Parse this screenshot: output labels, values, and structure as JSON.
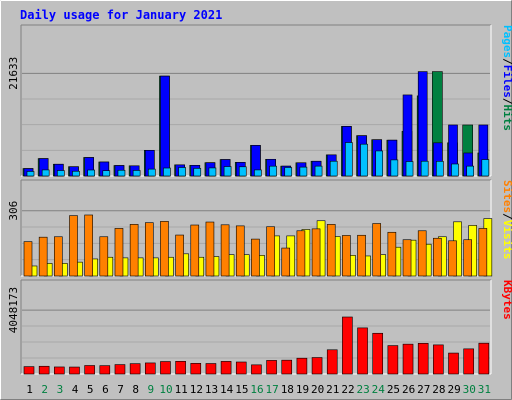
{
  "chart_data": {
    "type": "bar",
    "title": "Daily usage for January 2021",
    "categories": [
      "1",
      "2",
      "3",
      "4",
      "5",
      "6",
      "7",
      "8",
      "9",
      "10",
      "11",
      "12",
      "13",
      "14",
      "15",
      "16",
      "17",
      "18",
      "19",
      "20",
      "21",
      "22",
      "23",
      "24",
      "25",
      "26",
      "27",
      "28",
      "29",
      "30",
      "31"
    ],
    "weekend_days": [
      "2",
      "3",
      "9",
      "10",
      "16",
      "17",
      "23",
      "24",
      "30",
      "31"
    ],
    "grid": true,
    "panels": [
      {
        "name": "hits_files_pages",
        "max_label": "21633",
        "ymax": 21633,
        "right_labels": [
          {
            "text": "Pages",
            "color": "#00c0ff"
          },
          {
            "text": "/",
            "color": "#000000"
          },
          {
            "text": "Files",
            "color": "#0000ff"
          },
          {
            "text": "/",
            "color": "#000000"
          },
          {
            "text": "Hits",
            "color": "#008040"
          }
        ],
        "series": [
          {
            "name": "Hits",
            "color": "#008040",
            "values": [
              1574,
              3670,
              2480,
              1960,
              3900,
              2950,
              2210,
              2150,
              5410,
              21050,
              2350,
              2250,
              2810,
              3470,
              2880,
              6450,
              3520,
              2080,
              2790,
              3110,
              4450,
              10450,
              8500,
              7650,
              7550,
              9400,
              16880,
              22000,
              6990,
              10750,
              4850
            ]
          },
          {
            "name": "Files",
            "color": "#0000ff",
            "values": [
              1574,
              3670,
              2480,
              1960,
              3900,
              2950,
              2210,
              2150,
              5410,
              21050,
              2350,
              2250,
              2810,
              3470,
              2880,
              6450,
              3520,
              2080,
              2790,
              3110,
              4450,
              10450,
              8500,
              7650,
              7550,
              17080,
              22000,
              6990,
              10750,
              4850,
              10750
            ]
          },
          {
            "name": "Pages",
            "color": "#00c0ff",
            "values": [
              960,
              1280,
              1150,
              1000,
              1260,
              1120,
              1210,
              1170,
              1450,
              1680,
              1790,
              1600,
              1700,
              1990,
              1940,
              1280,
              2070,
              1790,
              1870,
              2080,
              3110,
              7050,
              6700,
              5280,
              3390,
              3050,
              3110,
              3090,
              2530,
              2080,
              3460
            ]
          }
        ]
      },
      {
        "name": "visits_sites",
        "max_label": "306",
        "ymax": 306,
        "right_labels": [
          {
            "text": "Sites",
            "color": "#ff8000"
          },
          {
            "text": "/",
            "color": "#000000"
          },
          {
            "text": "Visits",
            "color": "#ffff00"
          }
        ],
        "series": [
          {
            "name": "Visits",
            "color": "#ffff00",
            "values": [
              47,
              59,
              59,
              65,
              80,
              88,
              85,
              85,
              85,
              88,
              104,
              88,
              91,
              100,
              100,
              97,
              188,
              188,
              218,
              259,
              185,
              97,
              94,
              100,
              135,
              168,
              149,
              184,
              254,
              237,
              269
            ]
          },
          {
            "name": "Sites",
            "color": "#ff8000",
            "values": [
              161,
              182,
              184,
              283,
              286,
              184,
              223,
              242,
              250,
              256,
              192,
              239,
              253,
              240,
              235,
              173,
              231,
              131,
              212,
              221,
              242,
              190,
              191,
              246,
              205,
              170,
              212,
              177,
              165,
              170,
              223
            ]
          }
        ]
      },
      {
        "name": "kbytes",
        "max_label": "4048173",
        "ymax": 4048173,
        "right_labels": [
          {
            "text": "KBytes",
            "color": "#ff0000"
          }
        ],
        "series": [
          {
            "name": "KBytes",
            "color": "#ff0000",
            "values": [
              468000,
              491000,
              446000,
              441000,
              538000,
              530000,
              597000,
              656000,
              701000,
              790000,
              804000,
              676000,
              664000,
              799000,
              760000,
              580000,
              861000,
              876000,
              1001000,
              1044000,
              1534000,
              3610000,
              2920000,
              2580000,
              1800000,
              1891000,
              1943000,
              1843000,
              1326000,
              1592000,
              1952000
            ]
          }
        ]
      }
    ]
  }
}
